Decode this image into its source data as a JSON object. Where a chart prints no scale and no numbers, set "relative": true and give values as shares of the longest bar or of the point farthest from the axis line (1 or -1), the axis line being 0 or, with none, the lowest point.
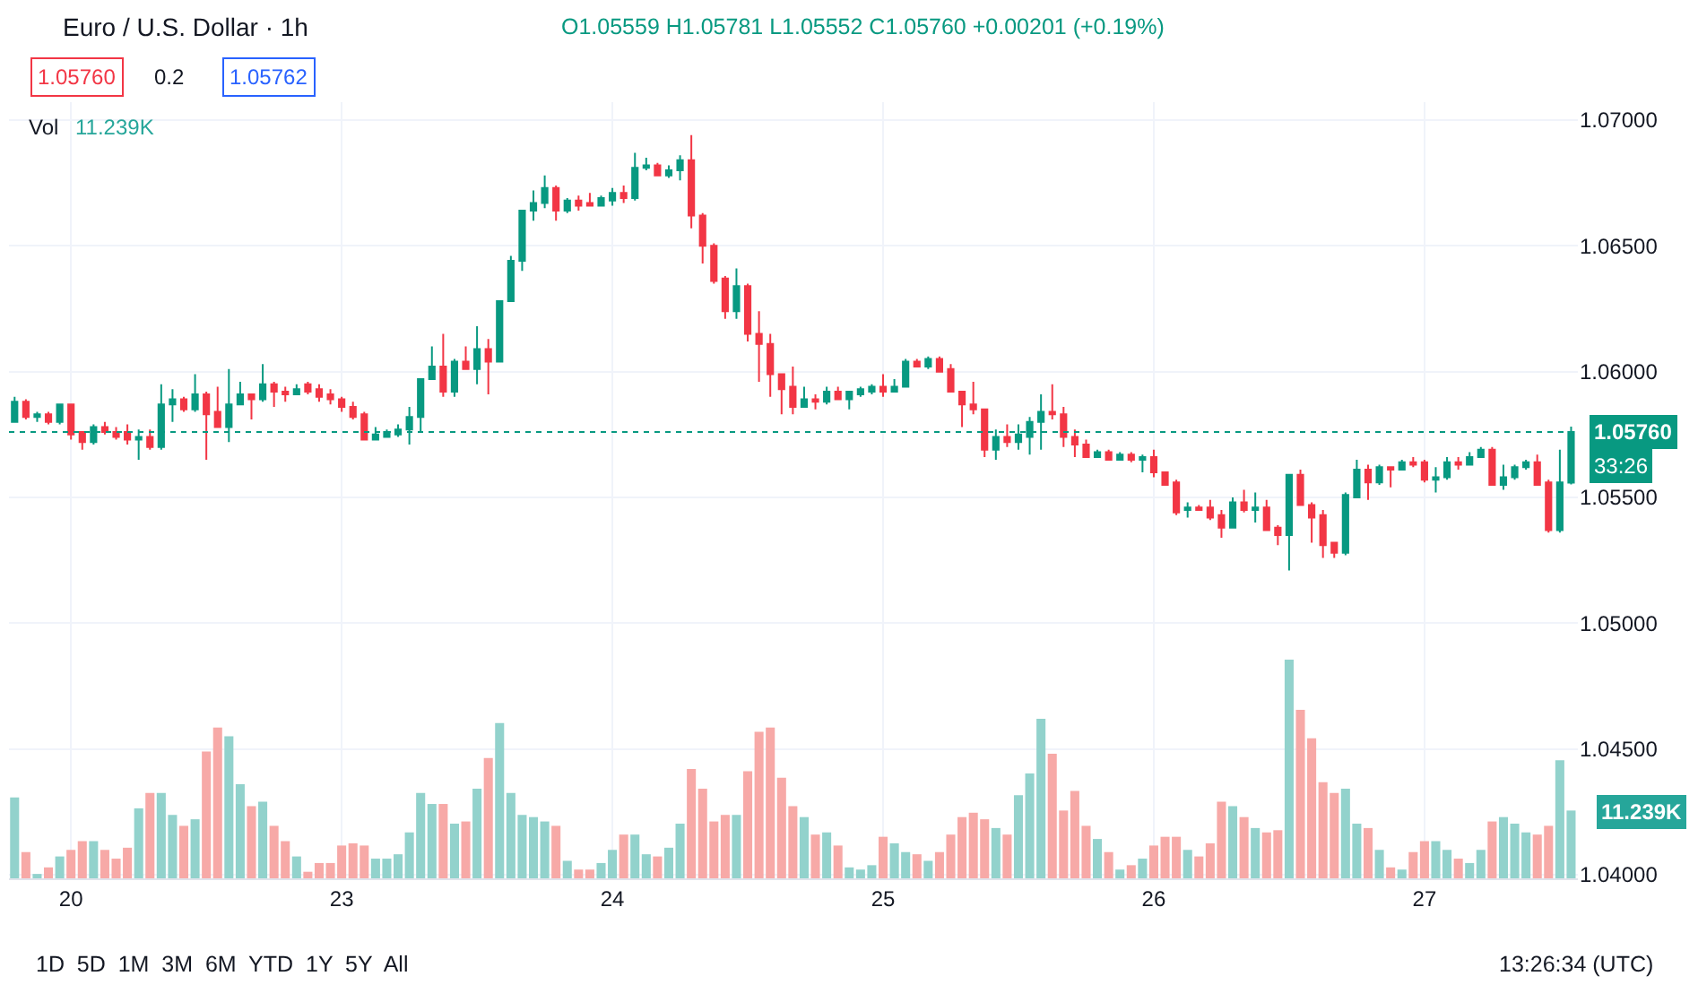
{
  "chart_data": [
    {
      "type": "candlestick",
      "title": "Euro / U.S. Dollar · 1h",
      "annotations": [
        "O1.05559 H1.05781 L1.05552 C1.05760 +0.00201 (+0.19%)",
        "1.05760",
        "0.2",
        "1.05762",
        "Vol",
        "11.239K",
        "33:26",
        "1D  5D  1M  3M  6M  YTD  1Y  5Y  All",
        "13:26:34 (UTC)"
      ],
      "categories": [
        null,
        null,
        null,
        null,
        null,
        "20",
        null,
        null,
        null,
        null,
        null,
        null,
        null,
        null,
        null,
        null,
        null,
        null,
        null,
        null,
        null,
        null,
        null,
        null,
        null,
        null,
        null,
        null,
        null,
        "23",
        null,
        null,
        null,
        null,
        null,
        null,
        null,
        null,
        null,
        null,
        null,
        null,
        null,
        null,
        null,
        null,
        null,
        null,
        null,
        null,
        null,
        null,
        null,
        "24",
        null,
        null,
        null,
        null,
        null,
        null,
        null,
        null,
        null,
        null,
        null,
        null,
        null,
        null,
        null,
        null,
        null,
        null,
        null,
        null,
        null,
        null,
        null,
        "25",
        null,
        null,
        null,
        null,
        null,
        null,
        null,
        null,
        null,
        null,
        null,
        null,
        null,
        null,
        null,
        null,
        null,
        null,
        null,
        null,
        null,
        null,
        null,
        "26",
        null,
        null,
        null,
        null,
        null,
        null,
        null,
        null,
        null,
        null,
        null,
        null,
        null,
        null,
        null,
        null,
        null,
        null,
        null,
        null,
        null,
        null,
        null,
        "27",
        null,
        null,
        null,
        null,
        null,
        null,
        null,
        null,
        null,
        null,
        null,
        null,
        null
      ],
      "ohlc": [
        [
          1.058,
          1.059,
          1.058,
          1.0588
        ],
        [
          1.0588,
          1.0589,
          1.0581,
          1.0582
        ],
        [
          1.0582,
          1.0584,
          1.058,
          1.0583
        ],
        [
          1.0583,
          1.0584,
          1.0579,
          1.058
        ],
        [
          1.058,
          1.0587,
          1.0579,
          1.0587
        ],
        [
          1.0587,
          1.0587,
          1.0573,
          1.0575
        ],
        [
          1.0576,
          1.0576,
          1.0569,
          1.0572
        ],
        [
          1.0572,
          1.0579,
          1.0571,
          1.0578
        ],
        [
          1.0578,
          1.058,
          1.0575,
          1.0576
        ],
        [
          1.0576,
          1.0578,
          1.0573,
          1.0574
        ],
        [
          1.0576,
          1.0579,
          1.0571,
          1.0573
        ],
        [
          1.0573,
          1.0577,
          1.0565,
          1.0574
        ],
        [
          1.0574,
          1.0577,
          1.0569,
          1.057
        ],
        [
          1.057,
          1.0595,
          1.0569,
          1.0587
        ],
        [
          1.0587,
          1.0593,
          1.058,
          1.0589
        ],
        [
          1.0589,
          1.059,
          1.0584,
          1.0585
        ],
        [
          1.0585,
          1.0599,
          1.0584,
          1.0591
        ],
        [
          1.0591,
          1.0592,
          1.0565,
          1.0583
        ],
        [
          1.0584,
          1.0594,
          1.0578,
          1.0578
        ],
        [
          1.0578,
          1.0601,
          1.0572,
          1.0587
        ],
        [
          1.0587,
          1.0596,
          1.0587,
          1.0591
        ],
        [
          1.0591,
          1.0591,
          1.0581,
          1.0589
        ],
        [
          1.0589,
          1.0603,
          1.0588,
          1.0595
        ],
        [
          1.0595,
          1.0596,
          1.0586,
          1.0592
        ],
        [
          1.0592,
          1.0594,
          1.0588,
          1.0591
        ],
        [
          1.0591,
          1.0595,
          1.0591,
          1.0593
        ],
        [
          1.0595,
          1.0596,
          1.0591,
          1.0592
        ],
        [
          1.0593,
          1.0595,
          1.0588,
          1.059
        ],
        [
          1.0591,
          1.0593,
          1.0587,
          1.0589
        ],
        [
          1.0589,
          1.059,
          1.0584,
          1.0586
        ],
        [
          1.0586,
          1.0588,
          1.0581,
          1.0582
        ],
        [
          1.0583,
          1.0584,
          1.0573,
          1.0573
        ],
        [
          1.0573,
          1.0578,
          1.0573,
          1.0575
        ],
        [
          1.0574,
          1.0577,
          1.0574,
          1.0576
        ],
        [
          1.0575,
          1.0579,
          1.0574,
          1.0577
        ],
        [
          1.0577,
          1.0586,
          1.0571,
          1.0582
        ],
        [
          1.0582,
          1.0597,
          1.0576,
          1.0597
        ],
        [
          1.0597,
          1.061,
          1.0597,
          1.0602
        ],
        [
          1.0602,
          1.0615,
          1.059,
          1.0592
        ],
        [
          1.0592,
          1.0605,
          1.059,
          1.0604
        ],
        [
          1.0604,
          1.061,
          1.0601,
          1.0601
        ],
        [
          1.0601,
          1.0618,
          1.0595,
          1.0609
        ],
        [
          1.0609,
          1.0613,
          1.0591,
          1.0604
        ],
        [
          1.0604,
          1.0628,
          1.0604,
          1.0628
        ],
        [
          1.0628,
          1.0646,
          1.0628,
          1.0644
        ],
        [
          1.0644,
          1.0664,
          1.064,
          1.0664
        ],
        [
          1.0664,
          1.0672,
          1.066,
          1.0667
        ],
        [
          1.0667,
          1.0678,
          1.0665,
          1.0673
        ],
        [
          1.0673,
          1.0674,
          1.066,
          1.0664
        ],
        [
          1.0664,
          1.0669,
          1.0663,
          1.0668
        ],
        [
          1.0668,
          1.067,
          1.0664,
          1.0666
        ],
        [
          1.0667,
          1.0671,
          1.0666,
          1.0666
        ],
        [
          1.0666,
          1.067,
          1.0666,
          1.0669
        ],
        [
          1.0668,
          1.0673,
          1.0666,
          1.0671
        ],
        [
          1.0671,
          1.0674,
          1.0667,
          1.0669
        ],
        [
          1.0669,
          1.0687,
          1.0668,
          1.0681
        ],
        [
          1.0681,
          1.0685,
          1.068,
          1.0682
        ],
        [
          1.0682,
          1.0683,
          1.0678,
          1.0678
        ],
        [
          1.0678,
          1.0682,
          1.0677,
          1.068
        ],
        [
          1.068,
          1.0686,
          1.0676,
          1.0684
        ],
        [
          1.0684,
          1.0694,
          1.0657,
          1.0662
        ],
        [
          1.0662,
          1.0663,
          1.0643,
          1.065
        ],
        [
          1.065,
          1.0651,
          1.0635,
          1.0636
        ],
        [
          1.0637,
          1.0638,
          1.0621,
          1.0624
        ],
        [
          1.0624,
          1.0641,
          1.0621,
          1.0634
        ],
        [
          1.0634,
          1.0635,
          1.0612,
          1.0615
        ],
        [
          1.0615,
          1.0624,
          1.0596,
          1.0611
        ],
        [
          1.0611,
          1.0615,
          1.059,
          1.0599
        ],
        [
          1.0599,
          1.0599,
          1.0583,
          1.0593
        ],
        [
          1.0594,
          1.0602,
          1.0583,
          1.0586
        ],
        [
          1.0586,
          1.0594,
          1.0586,
          1.0589
        ],
        [
          1.0589,
          1.0591,
          1.0585,
          1.0588
        ],
        [
          1.0588,
          1.0594,
          1.0587,
          1.0592
        ],
        [
          1.0592,
          1.0594,
          1.0589,
          1.0589
        ],
        [
          1.0589,
          1.0592,
          1.0585,
          1.0592
        ],
        [
          1.0591,
          1.0594,
          1.059,
          1.0593
        ],
        [
          1.0592,
          1.0595,
          1.0591,
          1.0594
        ],
        [
          1.0594,
          1.0599,
          1.059,
          1.0592
        ],
        [
          1.0592,
          1.0597,
          1.0592,
          1.0594
        ],
        [
          1.0594,
          1.0605,
          1.0594,
          1.0604
        ],
        [
          1.0604,
          1.0605,
          1.0602,
          1.0602
        ],
        [
          1.0602,
          1.0606,
          1.0601,
          1.0605
        ],
        [
          1.0605,
          1.0606,
          1.06,
          1.06
        ],
        [
          1.0601,
          1.0603,
          1.0592,
          1.0592
        ],
        [
          1.0592,
          1.0592,
          1.0578,
          1.0587
        ],
        [
          1.0587,
          1.0596,
          1.0583,
          1.0585
        ],
        [
          1.0585,
          1.0585,
          1.0566,
          1.0569
        ],
        [
          1.0569,
          1.0577,
          1.0565,
          1.0574
        ],
        [
          1.0574,
          1.0579,
          1.057,
          1.0572
        ],
        [
          1.0572,
          1.0579,
          1.0569,
          1.0575
        ],
        [
          1.0574,
          1.0582,
          1.0567,
          1.058
        ],
        [
          1.058,
          1.0591,
          1.0569,
          1.0584
        ],
        [
          1.0584,
          1.0595,
          1.0581,
          1.0583
        ],
        [
          1.0583,
          1.0586,
          1.057,
          1.0574
        ],
        [
          1.0574,
          1.0577,
          1.0566,
          1.0571
        ],
        [
          1.0571,
          1.0573,
          1.0566,
          1.0566
        ],
        [
          1.0566,
          1.0569,
          1.0566,
          1.0568
        ],
        [
          1.0568,
          1.0569,
          1.0565,
          1.0565
        ],
        [
          1.0565,
          1.0568,
          1.0565,
          1.0567
        ],
        [
          1.0567,
          1.0568,
          1.0564,
          1.0565
        ],
        [
          1.0565,
          1.0567,
          1.056,
          1.0566
        ],
        [
          1.0566,
          1.0569,
          1.0558,
          1.056
        ],
        [
          1.056,
          1.056,
          1.0555,
          1.0555
        ],
        [
          1.0556,
          1.0557,
          1.0543,
          1.0544
        ],
        [
          1.0545,
          1.0548,
          1.0542,
          1.0546
        ],
        [
          1.0546,
          1.0547,
          1.0545,
          1.0545
        ],
        [
          1.0546,
          1.0549,
          1.0541,
          1.0542
        ],
        [
          1.0543,
          1.0545,
          1.0534,
          1.0538
        ],
        [
          1.0538,
          1.055,
          1.0538,
          1.0548
        ],
        [
          1.0548,
          1.0553,
          1.0544,
          1.0545
        ],
        [
          1.0545,
          1.0552,
          1.054,
          1.0546
        ],
        [
          1.0546,
          1.0549,
          1.0537,
          1.0537
        ],
        [
          1.0538,
          1.0539,
          1.0531,
          1.0535
        ],
        [
          1.0535,
          1.0559,
          1.0521,
          1.0559
        ],
        [
          1.0559,
          1.0561,
          1.0547,
          1.0547
        ],
        [
          1.0547,
          1.0548,
          1.0532,
          1.0542
        ],
        [
          1.0543,
          1.0545,
          1.0526,
          1.0531
        ],
        [
          1.0532,
          1.0532,
          1.0526,
          1.0528
        ],
        [
          1.0528,
          1.0552,
          1.0527,
          1.0551
        ],
        [
          1.055,
          1.0565,
          1.055,
          1.0561
        ],
        [
          1.0561,
          1.0563,
          1.0549,
          1.0556
        ],
        [
          1.0556,
          1.0563,
          1.0555,
          1.0562
        ],
        [
          1.0562,
          1.0562,
          1.0554,
          1.0561
        ],
        [
          1.0561,
          1.0565,
          1.0561,
          1.0564
        ],
        [
          1.0564,
          1.0566,
          1.0562,
          1.0563
        ],
        [
          1.0564,
          1.0565,
          1.0556,
          1.0557
        ],
        [
          1.0557,
          1.0562,
          1.0552,
          1.0558
        ],
        [
          1.0558,
          1.0566,
          1.0557,
          1.0564
        ],
        [
          1.0564,
          1.0566,
          1.0561,
          1.0563
        ],
        [
          1.0563,
          1.0568,
          1.0563,
          1.0566
        ],
        [
          1.0566,
          1.057,
          1.0566,
          1.0569
        ],
        [
          1.0569,
          1.057,
          1.0555,
          1.0555
        ],
        [
          1.0555,
          1.0563,
          1.0553,
          1.0558
        ],
        [
          1.0558,
          1.0563,
          1.0557,
          1.0562
        ],
        [
          1.0562,
          1.0565,
          1.0561,
          1.0564
        ],
        [
          1.0564,
          1.0567,
          1.0555,
          1.0555
        ],
        [
          1.0556,
          1.0557,
          1.0536,
          1.0537
        ],
        [
          1.0537,
          1.0569,
          1.0536,
          1.0556
        ],
        [
          1.05559,
          1.05781,
          1.05552,
          1.0576
        ]
      ],
      "ylim": [
        1.03986,
        1.07071
      ],
      "yticks": [
        {
          "value": 1.04,
          "label": "1.04000"
        },
        {
          "value": 1.045,
          "label": "1.04500"
        },
        {
          "value": 1.05,
          "label": "1.05000"
        },
        {
          "value": 1.055,
          "label": "1.05500"
        },
        {
          "value": 1.06,
          "label": "1.06000"
        },
        {
          "value": 1.065,
          "label": "1.06500"
        },
        {
          "value": 1.07,
          "label": "1.07000"
        }
      ],
      "grid": true,
      "tick_labels": "y",
      "ref_lines": [
        {
          "axis": "y",
          "value": 1.0576,
          "label": "1.05760",
          "color": "#089981",
          "line_style": "dotted"
        }
      ]
    },
    {
      "type": "bar",
      "relative": true,
      "tick_labels": "x",
      "annotations": [
        "11.239K"
      ],
      "categories": [
        null,
        null,
        null,
        null,
        null,
        "20",
        null,
        null,
        null,
        null,
        null,
        null,
        null,
        null,
        null,
        null,
        null,
        null,
        null,
        null,
        null,
        null,
        null,
        null,
        null,
        null,
        null,
        null,
        null,
        "23",
        null,
        null,
        null,
        null,
        null,
        null,
        null,
        null,
        null,
        null,
        null,
        null,
        null,
        null,
        null,
        null,
        null,
        null,
        null,
        null,
        null,
        null,
        null,
        "24",
        null,
        null,
        null,
        null,
        null,
        null,
        null,
        null,
        null,
        null,
        null,
        null,
        null,
        null,
        null,
        null,
        null,
        null,
        null,
        null,
        null,
        null,
        null,
        "25",
        null,
        null,
        null,
        null,
        null,
        null,
        null,
        null,
        null,
        null,
        null,
        null,
        null,
        null,
        null,
        null,
        null,
        null,
        null,
        null,
        null,
        null,
        null,
        "26",
        null,
        null,
        null,
        null,
        null,
        null,
        null,
        null,
        null,
        null,
        null,
        null,
        null,
        null,
        null,
        null,
        null,
        null,
        null,
        null,
        null,
        null,
        null,
        "27",
        null,
        null,
        null,
        null,
        null,
        null,
        null,
        null,
        null,
        null,
        null,
        null,
        null
      ],
      "values": [
        0.37,
        0.12,
        0.02,
        0.05,
        0.1,
        0.13,
        0.17,
        0.17,
        0.13,
        0.09,
        0.14,
        0.32,
        0.39,
        0.39,
        0.29,
        0.24,
        0.27,
        0.58,
        0.69,
        0.65,
        0.43,
        0.33,
        0.35,
        0.24,
        0.17,
        0.1,
        0.03,
        0.07,
        0.07,
        0.15,
        0.16,
        0.15,
        0.09,
        0.09,
        0.11,
        0.21,
        0.39,
        0.34,
        0.34,
        0.25,
        0.26,
        0.41,
        0.55,
        0.71,
        0.39,
        0.29,
        0.28,
        0.26,
        0.24,
        0.08,
        0.04,
        0.04,
        0.07,
        0.13,
        0.2,
        0.2,
        0.11,
        0.1,
        0.14,
        0.25,
        0.5,
        0.41,
        0.26,
        0.29,
        0.29,
        0.49,
        0.67,
        0.69,
        0.46,
        0.33,
        0.28,
        0.2,
        0.21,
        0.15,
        0.05,
        0.04,
        0.06,
        0.19,
        0.16,
        0.12,
        0.11,
        0.08,
        0.12,
        0.2,
        0.28,
        0.3,
        0.27,
        0.23,
        0.2,
        0.38,
        0.48,
        0.73,
        0.57,
        0.31,
        0.4,
        0.24,
        0.18,
        0.12,
        0.04,
        0.06,
        0.09,
        0.15,
        0.19,
        0.19,
        0.13,
        0.1,
        0.16,
        0.35,
        0.33,
        0.28,
        0.23,
        0.21,
        0.22,
        1,
        0.77,
        0.64,
        0.44,
        0.39,
        0.41,
        0.25,
        0.23,
        0.13,
        0.05,
        0.04,
        0.12,
        0.17,
        0.17,
        0.13,
        0.09,
        0.07,
        0.13,
        0.26,
        0.28,
        0.25,
        0.21,
        0.2,
        0.24,
        0.54,
        0.31
      ],
      "colors": [
        "#92d2cc",
        "#f7a9a7",
        "#92d2cc",
        "#f7a9a7",
        "#92d2cc",
        "#f7a9a7",
        "#f7a9a7",
        "#92d2cc",
        "#f7a9a7",
        "#f7a9a7",
        "#f7a9a7",
        "#92d2cc",
        "#f7a9a7",
        "#92d2cc",
        "#92d2cc",
        "#f7a9a7",
        "#92d2cc",
        "#f7a9a7",
        "#f7a9a7",
        "#92d2cc",
        "#92d2cc",
        "#f7a9a7",
        "#92d2cc",
        "#f7a9a7",
        "#f7a9a7",
        "#92d2cc",
        "#f7a9a7",
        "#f7a9a7",
        "#f7a9a7",
        "#f7a9a7",
        "#f7a9a7",
        "#f7a9a7",
        "#92d2cc",
        "#92d2cc",
        "#92d2cc",
        "#92d2cc",
        "#92d2cc",
        "#92d2cc",
        "#f7a9a7",
        "#92d2cc",
        "#f7a9a7",
        "#92d2cc",
        "#f7a9a7",
        "#92d2cc",
        "#92d2cc",
        "#92d2cc",
        "#92d2cc",
        "#92d2cc",
        "#f7a9a7",
        "#92d2cc",
        "#f7a9a7",
        "#f7a9a7",
        "#92d2cc",
        "#92d2cc",
        "#f7a9a7",
        "#92d2cc",
        "#92d2cc",
        "#f7a9a7",
        "#92d2cc",
        "#92d2cc",
        "#f7a9a7",
        "#f7a9a7",
        "#f7a9a7",
        "#f7a9a7",
        "#92d2cc",
        "#f7a9a7",
        "#f7a9a7",
        "#f7a9a7",
        "#f7a9a7",
        "#f7a9a7",
        "#92d2cc",
        "#f7a9a7",
        "#92d2cc",
        "#f7a9a7",
        "#92d2cc",
        "#92d2cc",
        "#92d2cc",
        "#f7a9a7",
        "#92d2cc",
        "#92d2cc",
        "#f7a9a7",
        "#92d2cc",
        "#f7a9a7",
        "#f7a9a7",
        "#f7a9a7",
        "#f7a9a7",
        "#f7a9a7",
        "#92d2cc",
        "#f7a9a7",
        "#92d2cc",
        "#92d2cc",
        "#92d2cc",
        "#f7a9a7",
        "#f7a9a7",
        "#f7a9a7",
        "#f7a9a7",
        "#92d2cc",
        "#f7a9a7",
        "#92d2cc",
        "#f7a9a7",
        "#92d2cc",
        "#f7a9a7",
        "#f7a9a7",
        "#f7a9a7",
        "#92d2cc",
        "#f7a9a7",
        "#f7a9a7",
        "#f7a9a7",
        "#92d2cc",
        "#f7a9a7",
        "#92d2cc",
        "#f7a9a7",
        "#f7a9a7",
        "#92d2cc",
        "#f7a9a7",
        "#f7a9a7",
        "#f7a9a7",
        "#f7a9a7",
        "#92d2cc",
        "#92d2cc",
        "#f7a9a7",
        "#92d2cc",
        "#f7a9a7",
        "#92d2cc",
        "#f7a9a7",
        "#f7a9a7",
        "#92d2cc",
        "#92d2cc",
        "#f7a9a7",
        "#92d2cc",
        "#92d2cc",
        "#f7a9a7",
        "#92d2cc",
        "#92d2cc",
        "#92d2cc",
        "#f7a9a7",
        "#f7a9a7",
        "#92d2cc",
        "#92d2cc"
      ]
    }
  ]
}
